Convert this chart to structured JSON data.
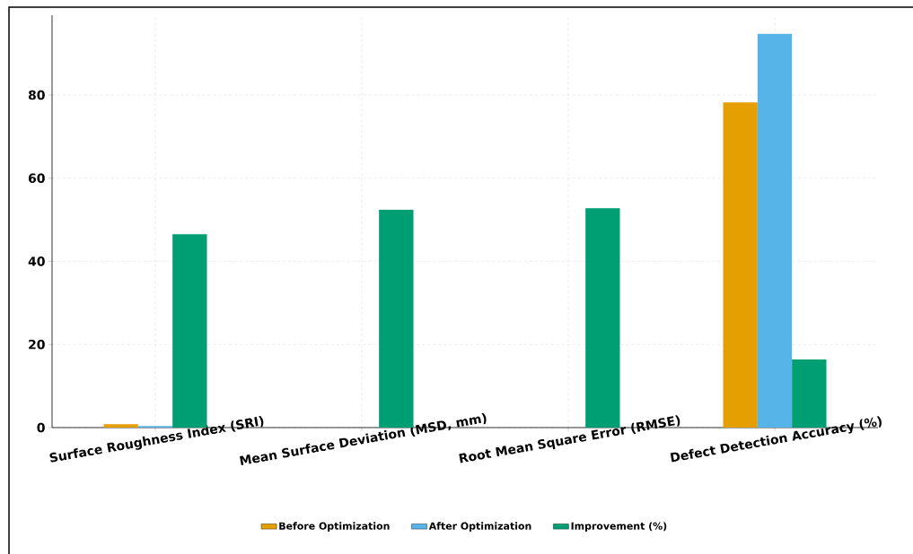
{
  "chart_data": {
    "type": "bar",
    "categories": [
      "Surface Roughness Index (SRI)",
      "Mean Surface Deviation (MSD, mm)",
      "Root Mean Square Error (RMSE)",
      "Defect Detection Accuracy (%)"
    ],
    "series": [
      {
        "name": "Before Optimization",
        "color": "#e69f00",
        "values": [
          0.8,
          0,
          0,
          78.2
        ]
      },
      {
        "name": "After Optimization",
        "color": "#56b4e9",
        "values": [
          0.4,
          0,
          0,
          94.7
        ]
      },
      {
        "name": "Improvement (%)",
        "color": "#009e73",
        "values": [
          46.5,
          52.4,
          52.8,
          16.4
        ]
      }
    ],
    "ylim": [
      0,
      99.2
    ],
    "yticks": [
      0,
      20,
      40,
      60,
      80
    ],
    "grid": true,
    "legend": "bottom"
  }
}
